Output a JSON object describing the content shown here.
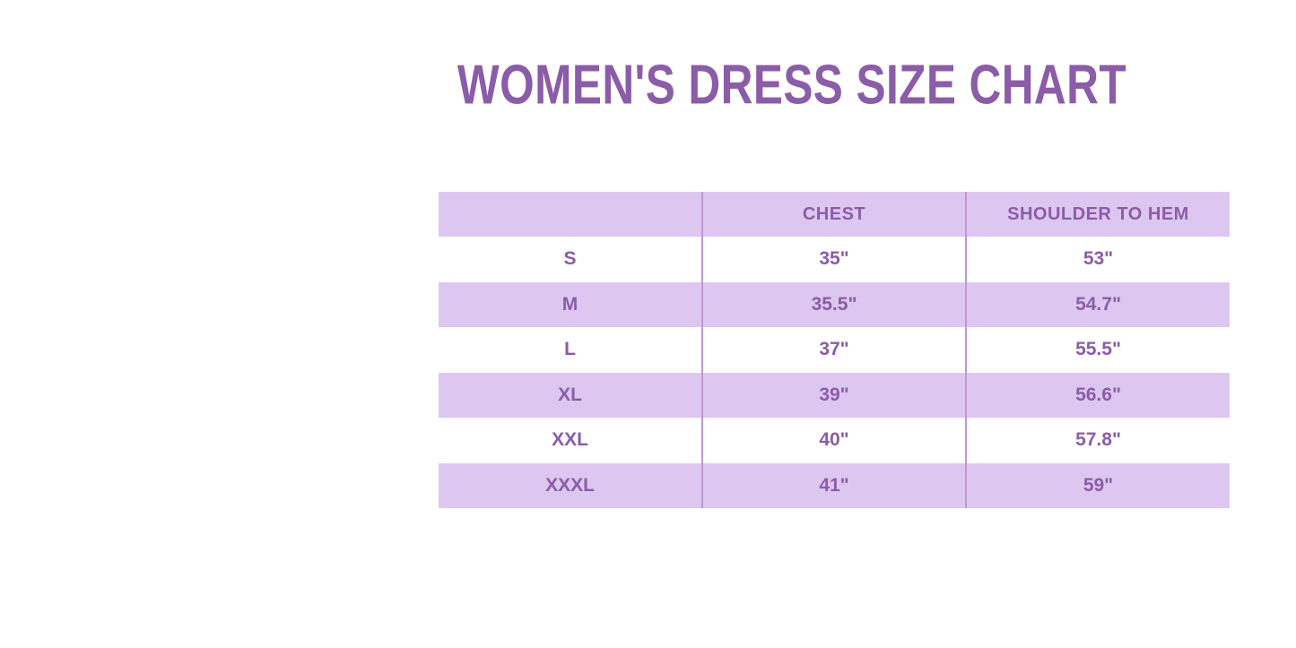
{
  "title": {
    "text": "WOMEN'S DRESS SIZE CHART"
  },
  "colors": {
    "accent_text": "#8b5ca8",
    "header_bg": "#ddc7f0",
    "row_alt_bg": "#ddc7f0",
    "row_bg": "#ffffff",
    "divider": "#bb99d8",
    "page_bg": "#ffffff"
  },
  "table": {
    "columns": [
      "",
      "CHEST",
      "SHOULDER TO HEM"
    ],
    "rows": [
      {
        "size": "S",
        "chest": "35\"",
        "shoulder_to_hem": "53\""
      },
      {
        "size": "M",
        "chest": "35.5\"",
        "shoulder_to_hem": "54.7\""
      },
      {
        "size": "L",
        "chest": "37\"",
        "shoulder_to_hem": "55.5\""
      },
      {
        "size": "XL",
        "chest": "39\"",
        "shoulder_to_hem": "56.6\""
      },
      {
        "size": "XXL",
        "chest": "40\"",
        "shoulder_to_hem": "57.8\""
      },
      {
        "size": "XXXL",
        "chest": "41\"",
        "shoulder_to_hem": "59\""
      }
    ]
  },
  "chart_data": {
    "type": "table",
    "title": "WOMEN'S DRESS SIZE CHART",
    "columns": [
      "",
      "CHEST",
      "SHOULDER TO HEM"
    ],
    "rows": [
      [
        "S",
        "35\"",
        "53\""
      ],
      [
        "M",
        "35.5\"",
        "54.7\""
      ],
      [
        "L",
        "37\"",
        "55.5\""
      ],
      [
        "XL",
        "39\"",
        "56.6\""
      ],
      [
        "XXL",
        "40\"",
        "57.8\""
      ],
      [
        "XXXL",
        "41\"",
        "59\""
      ]
    ],
    "sizes": [
      "S",
      "M",
      "L",
      "XL",
      "XXL",
      "XXXL"
    ],
    "chest_inches": [
      35,
      35.5,
      37,
      39,
      40,
      41
    ],
    "shoulder_to_hem_inches": [
      53,
      54.7,
      55.5,
      56.6,
      57.8,
      59
    ]
  }
}
